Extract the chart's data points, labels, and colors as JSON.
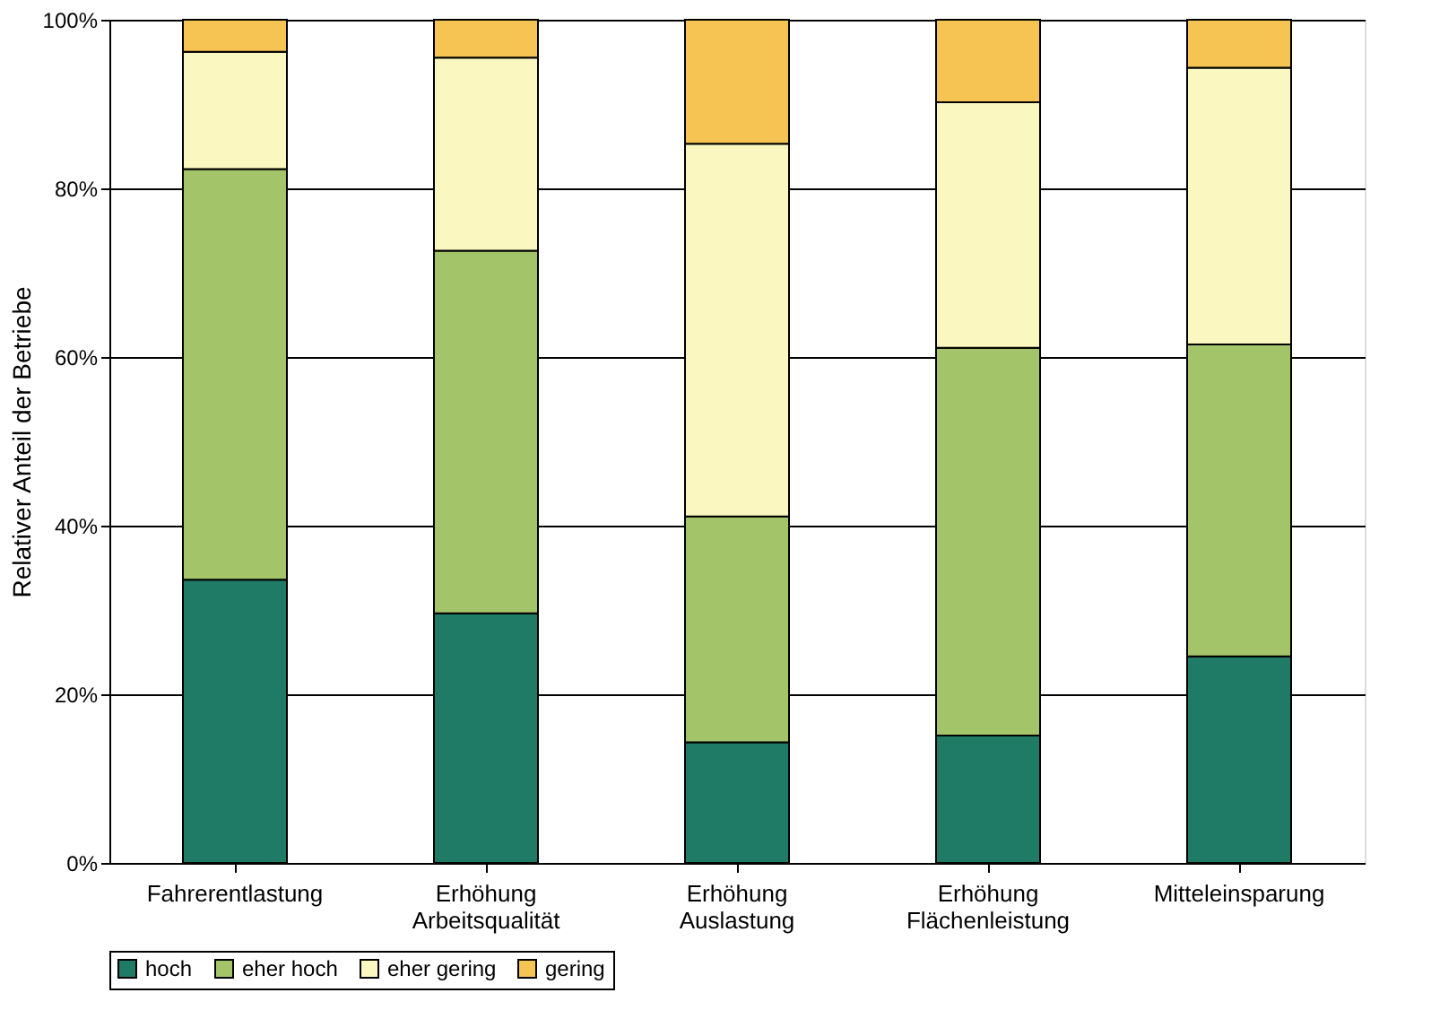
{
  "chart_data": {
    "type": "bar",
    "stacked": true,
    "ylabel": "Relativer Anteil der Betriebe",
    "categories": [
      "Fahrerentlastung",
      "Erhöhung\nArbeitsqualität",
      "Erhöhung\nAuslastung",
      "Erhöhung\nFlächenleistung",
      "Mitteleinsparung"
    ],
    "series": [
      {
        "name": "hoch",
        "color": "#1f7a66",
        "values": [
          33.6,
          29.6,
          14.3,
          15.1,
          24.5
        ]
      },
      {
        "name": "eher hoch",
        "color": "#a4c46a",
        "values": [
          48.7,
          43.0,
          26.8,
          46.0,
          37.0
        ]
      },
      {
        "name": "eher gering",
        "color": "#fbf7c0",
        "values": [
          13.9,
          22.9,
          44.2,
          29.1,
          32.8
        ]
      },
      {
        "name": "gering",
        "color": "#f5c453",
        "values": [
          3.8,
          4.5,
          14.7,
          9.8,
          5.7
        ]
      }
    ],
    "ylim": [
      0,
      100
    ],
    "yticks": [
      {
        "value": 0,
        "label": "0%"
      },
      {
        "value": 20,
        "label": "20%"
      },
      {
        "value": 40,
        "label": "40%"
      },
      {
        "value": 60,
        "label": "60%"
      },
      {
        "value": 80,
        "label": "80%"
      },
      {
        "value": 100,
        "label": "100%"
      }
    ],
    "grid": "y",
    "legend": "bottom"
  }
}
